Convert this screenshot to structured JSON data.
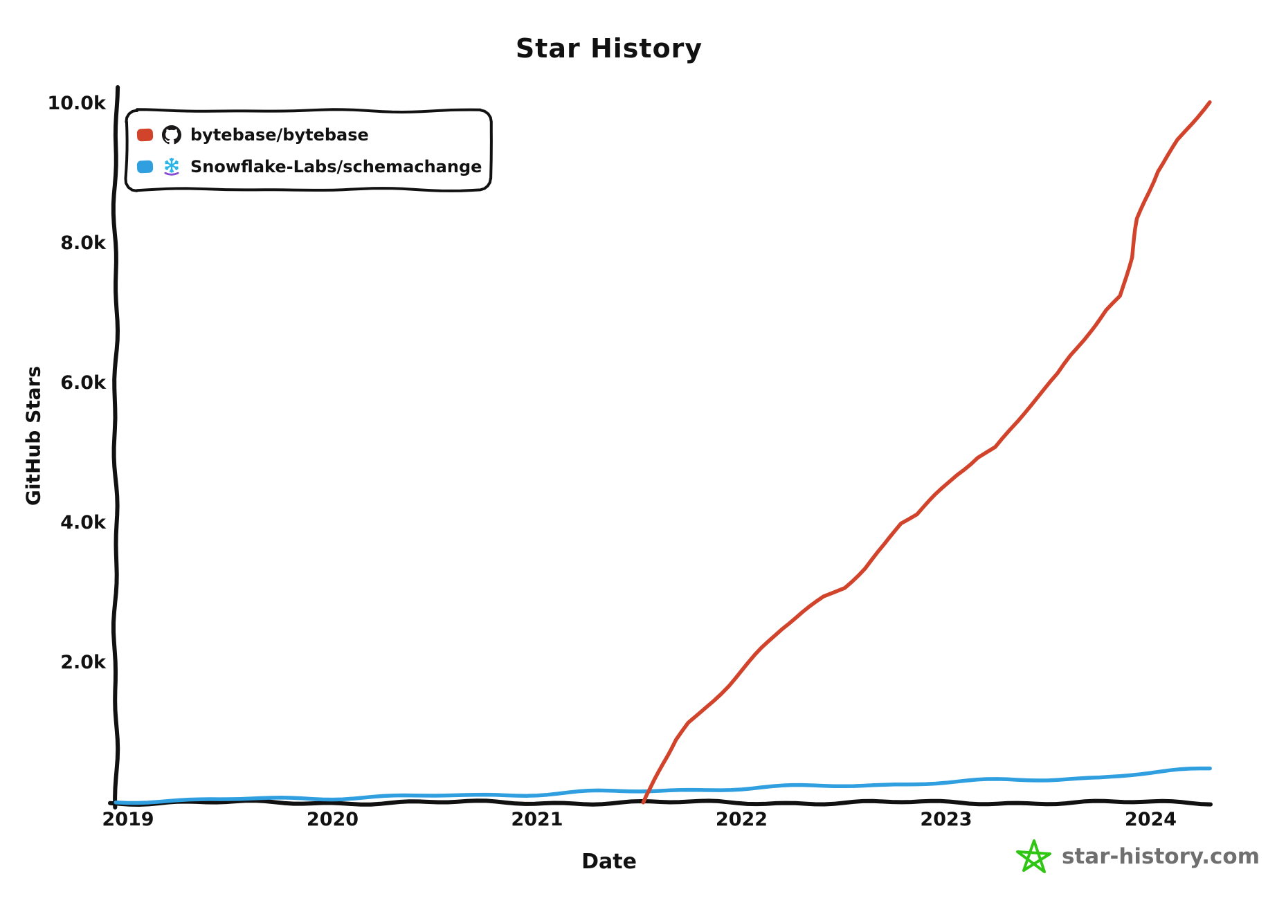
{
  "title": "Star History",
  "axes": {
    "xlabel": "Date",
    "ylabel": "GitHub Stars",
    "x_ticks": [
      "2019",
      "2020",
      "2021",
      "2022",
      "2023",
      "2024"
    ],
    "y_ticks": [
      "2.0k",
      "4.0k",
      "6.0k",
      "8.0k",
      "10.0k"
    ]
  },
  "legend": [
    {
      "repo": "bytebase/bytebase",
      "icon": "github",
      "color": "#d2432c"
    },
    {
      "repo": "Snowflake-Labs/schemachange",
      "icon": "snowflake",
      "color": "#2f9fe0"
    }
  ],
  "watermark": {
    "site": "star-history.com"
  },
  "colors": {
    "axis": "#111111",
    "text": "#111111",
    "red_series": "#d2432c",
    "blue_series": "#2f9fe0",
    "github_icon": "#191717",
    "snowflake_icon": "#29b5e8",
    "snowflake_accent": "#8a4bd3",
    "logo_green": "#2fc513",
    "watermark_text": "#6f6f6f"
  },
  "chart_data": {
    "type": "line",
    "title": "Star History",
    "xlabel": "Date",
    "ylabel": "GitHub Stars",
    "x_unit": "decimal_year",
    "x_range": [
      2018.94,
      2024.35
    ],
    "ylim": [
      0,
      10200
    ],
    "grid": false,
    "legend_position": "top-left",
    "style": "xkcd-handdrawn",
    "series": [
      {
        "name": "bytebase/bytebase",
        "color": "#d2432c",
        "points": [
          [
            2021.52,
            0
          ],
          [
            2021.56,
            200
          ],
          [
            2021.62,
            560
          ],
          [
            2021.68,
            900
          ],
          [
            2021.74,
            1140
          ],
          [
            2021.79,
            1270
          ],
          [
            2021.86,
            1470
          ],
          [
            2021.93,
            1680
          ],
          [
            2022.0,
            1900
          ],
          [
            2022.1,
            2200
          ],
          [
            2022.2,
            2480
          ],
          [
            2022.3,
            2720
          ],
          [
            2022.4,
            2950
          ],
          [
            2022.5,
            3090
          ],
          [
            2022.6,
            3360
          ],
          [
            2022.7,
            3690
          ],
          [
            2022.78,
            3990
          ],
          [
            2022.86,
            4120
          ],
          [
            2022.95,
            4400
          ],
          [
            2023.05,
            4700
          ],
          [
            2023.15,
            4950
          ],
          [
            2023.24,
            5090
          ],
          [
            2023.35,
            5450
          ],
          [
            2023.45,
            5800
          ],
          [
            2023.55,
            6130
          ],
          [
            2023.61,
            6400
          ],
          [
            2023.7,
            6750
          ],
          [
            2023.78,
            7050
          ],
          [
            2023.85,
            7250
          ],
          [
            2023.91,
            7800
          ],
          [
            2023.94,
            8350
          ],
          [
            2023.97,
            8600
          ],
          [
            2024.03,
            9040
          ],
          [
            2024.13,
            9490
          ],
          [
            2024.2,
            9720
          ],
          [
            2024.29,
            10020
          ]
        ]
      },
      {
        "name": "Snowflake-Labs/schemachange",
        "color": "#2f9fe0",
        "points": [
          [
            2018.94,
            15
          ],
          [
            2019.2,
            30
          ],
          [
            2019.5,
            45
          ],
          [
            2019.8,
            60
          ],
          [
            2020.1,
            75
          ],
          [
            2020.4,
            90
          ],
          [
            2020.7,
            105
          ],
          [
            2021.0,
            125
          ],
          [
            2021.25,
            150
          ],
          [
            2021.5,
            160
          ],
          [
            2021.75,
            185
          ],
          [
            2022.0,
            205
          ],
          [
            2022.3,
            230
          ],
          [
            2022.6,
            250
          ],
          [
            2022.9,
            280
          ],
          [
            2023.2,
            310
          ],
          [
            2023.5,
            335
          ],
          [
            2023.75,
            365
          ],
          [
            2024.0,
            420
          ],
          [
            2024.29,
            485
          ]
        ]
      }
    ]
  }
}
